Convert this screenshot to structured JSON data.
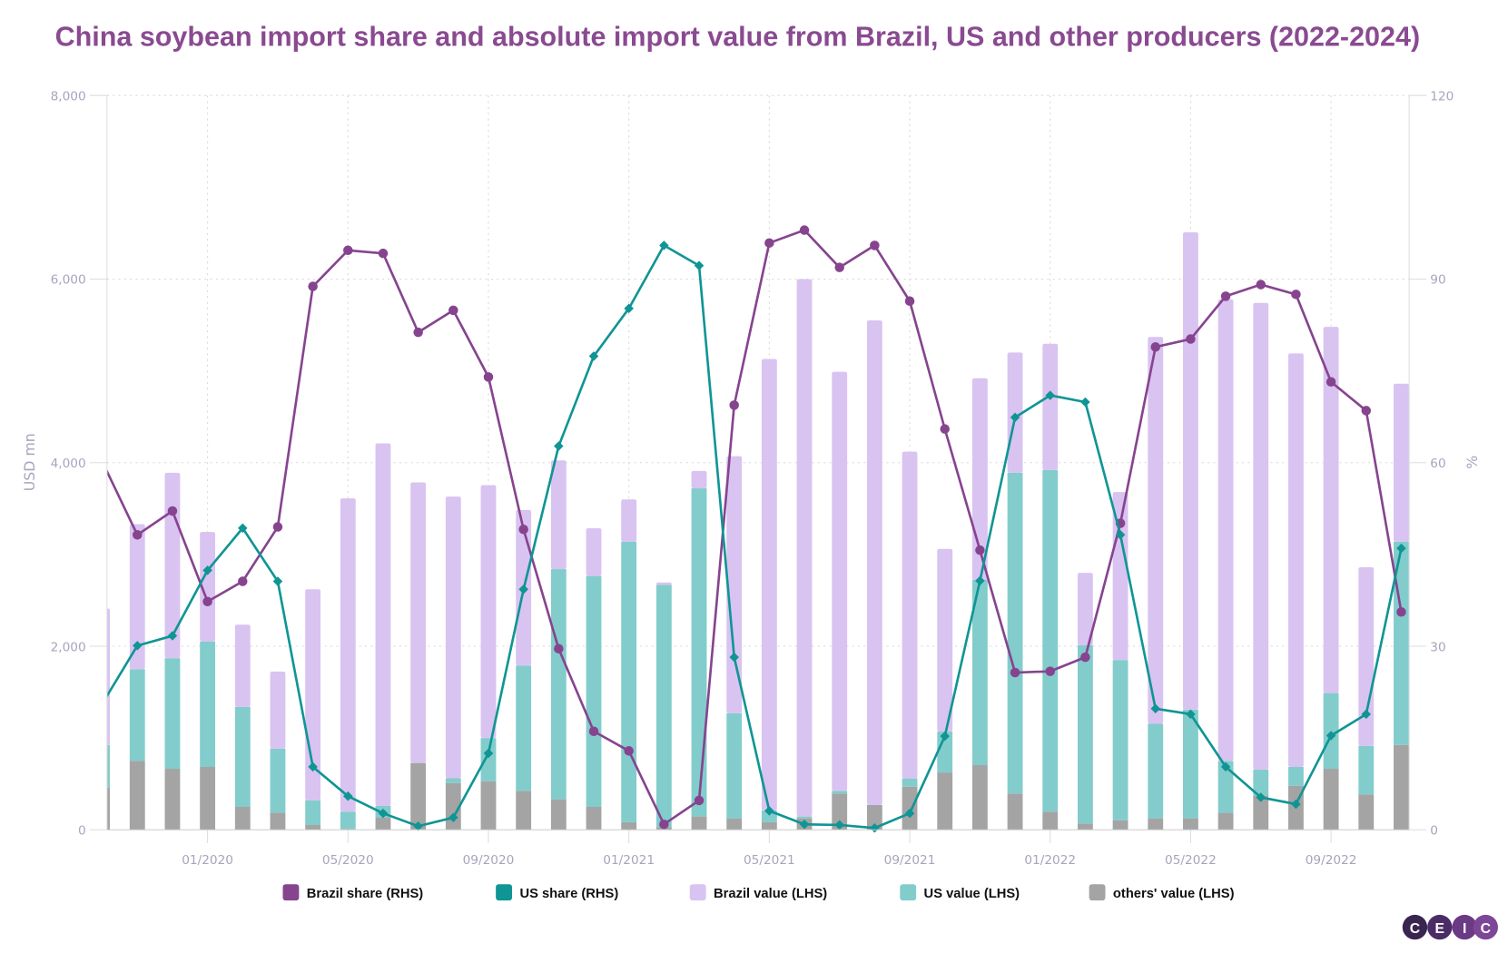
{
  "title": "China soybean import share and absolute import value from Brazil, US and other producers (2022-2024)",
  "logo_text": "CEIC",
  "colors": {
    "title": "#8a4a91",
    "brazil_share": "#86448f",
    "us_share": "#0f9594",
    "brazil_value": "#d9c3f1",
    "us_value": "#83cccc",
    "others_value": "#a4a4a4",
    "logo": "#5a2d6e"
  },
  "chart_data": {
    "type": "bar+line",
    "stacked": true,
    "xlabel": "",
    "ylabel_left": "USD mn",
    "ylabel_right": "%",
    "ylim_left": [
      0,
      8000
    ],
    "ylim_right": [
      0,
      120
    ],
    "yticks_left": [
      "0",
      "2,000",
      "4,000",
      "6,000",
      "8,000"
    ],
    "yticks_right": [
      "0",
      "30",
      "60",
      "90",
      "120"
    ],
    "xtick_labels": [
      "01/2020",
      "05/2020",
      "09/2020",
      "01/2021",
      "05/2021",
      "09/2021",
      "01/2022",
      "05/2022",
      "09/2022"
    ],
    "grid": true,
    "legend_position": "bottom",
    "categories": [
      "10/2019",
      "11/2019",
      "12/2019",
      "01/2020",
      "02/2020",
      "03/2020",
      "04/2020",
      "05/2020",
      "06/2020",
      "07/2020",
      "08/2020",
      "09/2020",
      "10/2020",
      "11/2020",
      "12/2020",
      "01/2021",
      "02/2021",
      "03/2021",
      "04/2021",
      "05/2021",
      "06/2021",
      "07/2021",
      "08/2021",
      "09/2021",
      "10/2021",
      "11/2021",
      "12/2021",
      "01/2022",
      "02/2022",
      "03/2022",
      "04/2022",
      "05/2022",
      "06/2022",
      "07/2022",
      "08/2022",
      "09/2022",
      "10/2022",
      "11/2022"
    ],
    "series": [
      {
        "name": "Brazil share (RHS)",
        "type": "line",
        "axis": "right",
        "marker": "circle",
        "values": [
          60.2,
          48.2,
          52.1,
          37.3,
          40.6,
          49.5,
          88.8,
          94.7,
          94.2,
          81.3,
          84.9,
          74.0,
          49.1,
          29.6,
          16.1,
          12.9,
          0.9,
          4.8,
          69.4,
          95.9,
          98.0,
          91.9,
          95.5,
          86.4,
          65.5,
          45.7,
          25.7,
          25.9,
          28.2,
          50.1,
          78.9,
          80.2,
          87.2,
          89.1,
          87.5,
          73.2,
          68.5,
          35.6
        ]
      },
      {
        "name": "US share (RHS)",
        "type": "line",
        "axis": "right",
        "marker": "diamond",
        "values": [
          20.6,
          30.1,
          31.7,
          42.4,
          49.3,
          40.6,
          10.3,
          5.5,
          2.7,
          0.6,
          2.0,
          12.5,
          39.3,
          62.7,
          77.4,
          85.2,
          95.5,
          92.2,
          28.2,
          3.1,
          0.9,
          0.8,
          0.3,
          2.7,
          15.3,
          40.7,
          67.4,
          71.0,
          69.9,
          48.2,
          19.8,
          18.9,
          10.3,
          5.3,
          4.2,
          15.4,
          18.9,
          46.0
        ]
      },
      {
        "name": "Brazil value (LHS)",
        "type": "bar",
        "axis": "left",
        "values": [
          1485,
          1580,
          2020,
          1195,
          895,
          840,
          2298,
          3412,
          3950,
          3057,
          3068,
          2755,
          1695,
          1185,
          520,
          460,
          25,
          190,
          2800,
          4920,
          5855,
          4565,
          5280,
          3560,
          1990,
          2195,
          1310,
          1375,
          790,
          1830,
          4215,
          5200,
          5030,
          5085,
          4505,
          3990,
          1945,
          1720
        ]
      },
      {
        "name": "US value (LHS)",
        "type": "bar",
        "axis": "left",
        "values": [
          465,
          1000,
          1205,
          1365,
          1090,
          698,
          270,
          188,
          125,
          0,
          52,
          470,
          1365,
          2507,
          2515,
          3057,
          2640,
          3575,
          1145,
          127,
          20,
          30,
          0,
          90,
          445,
          2020,
          3495,
          3722,
          1940,
          1746,
          1030,
          1185,
          563,
          280,
          205,
          825,
          530,
          2215
        ]
      },
      {
        "name": "others' value (LHS)",
        "type": "bar",
        "axis": "left",
        "values": [
          460,
          750,
          665,
          685,
          250,
          187,
          52,
          10,
          135,
          728,
          510,
          530,
          425,
          333,
          250,
          83,
          30,
          145,
          125,
          83,
          125,
          395,
          270,
          470,
          625,
          705,
          395,
          198,
          70,
          104,
          125,
          125,
          187,
          375,
          480,
          665,
          385,
          925
        ]
      }
    ]
  }
}
